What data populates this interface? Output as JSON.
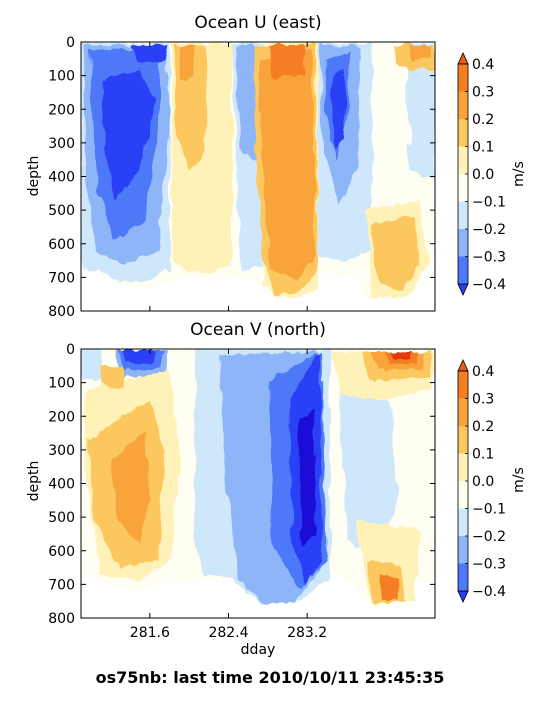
{
  "chart_data": [
    {
      "type": "heatmap",
      "title": "Ocean U (east)",
      "xlabel": "",
      "ylabel": "depth",
      "ylim": [
        800,
        0
      ],
      "y_ticks": [
        "0",
        "100",
        "200",
        "300",
        "400",
        "500",
        "600",
        "700",
        "800"
      ],
      "xlim": [
        280.9,
        284.5
      ],
      "x_ticks": [
        281.6,
        282.4,
        283.2
      ],
      "x_ticklabels_shown": false,
      "colorbar": {
        "label": "m/s",
        "ticks": [
          "0.4",
          "0.3",
          "0.2",
          "0.1",
          "0.0",
          "−0.1",
          "−0.2",
          "−0.3",
          "−0.4"
        ]
      },
      "features": [
        {
          "dday": [
            281.1,
            282.0
          ],
          "value": -0.3,
          "depth": [
            50,
            600
          ]
        },
        {
          "dday": [
            281.9,
            282.1
          ],
          "value": -0.4,
          "depth": [
            20,
            80
          ]
        },
        {
          "dday": [
            282.3,
            282.8
          ],
          "value": 0.2,
          "depth": [
            50,
            400
          ]
        },
        {
          "dday": [
            282.8,
            283.5
          ],
          "value": 0.2,
          "depth": [
            50,
            700
          ]
        },
        {
          "dday": [
            283.3,
            283.5
          ],
          "value": -0.4,
          "depth": [
            100,
            400
          ]
        },
        {
          "dday": [
            283.6,
            284.0
          ],
          "value": 0.2,
          "depth": [
            450,
            700
          ]
        }
      ]
    },
    {
      "type": "heatmap",
      "title": "Ocean V (north)",
      "xlabel": "dday",
      "ylabel": "depth",
      "ylim": [
        800,
        0
      ],
      "y_ticks": [
        "0",
        "100",
        "200",
        "300",
        "400",
        "500",
        "600",
        "700",
        "800"
      ],
      "xlim": [
        280.9,
        284.5
      ],
      "x_ticks": [
        281.6,
        282.4,
        283.2
      ],
      "x_ticklabels": [
        "281.6",
        "282.4",
        "283.2"
      ],
      "colorbar": {
        "label": "m/s",
        "ticks": [
          "0.4",
          "0.3",
          "0.2",
          "0.1",
          "0.0",
          "−0.1",
          "−0.2",
          "−0.3",
          "−0.4"
        ]
      },
      "features": [
        {
          "dday": [
            281.2,
            281.8
          ],
          "value": 0.2,
          "depth": [
            200,
            650
          ]
        },
        {
          "dday": [
            281.8,
            282.1
          ],
          "value": -0.3,
          "depth": [
            10,
            60
          ]
        },
        {
          "dday": [
            282.5,
            283.2
          ],
          "value": -0.2,
          "depth": [
            50,
            750
          ]
        },
        {
          "dday": [
            283.1,
            283.4
          ],
          "value": -0.4,
          "depth": [
            50,
            700
          ]
        },
        {
          "dday": [
            283.8,
            284.3
          ],
          "value": 0.3,
          "depth": [
            20,
            60
          ]
        },
        {
          "dday": [
            283.8,
            284.1
          ],
          "value": 0.2,
          "depth": [
            550,
            750
          ]
        }
      ]
    }
  ],
  "footer": "os75nb: last time 2010/10/11 23:45:35",
  "colors": {
    "levels": [
      "#2b3ff6",
      "#4d78f7",
      "#8fb5f9",
      "#cfe7fb",
      "#fefef2",
      "#fff2b8",
      "#fdc75f",
      "#f9a33a",
      "#f57d22",
      "#ef5a12"
    ],
    "deep": "#1a09d6",
    "hot": "#e33b0a"
  }
}
